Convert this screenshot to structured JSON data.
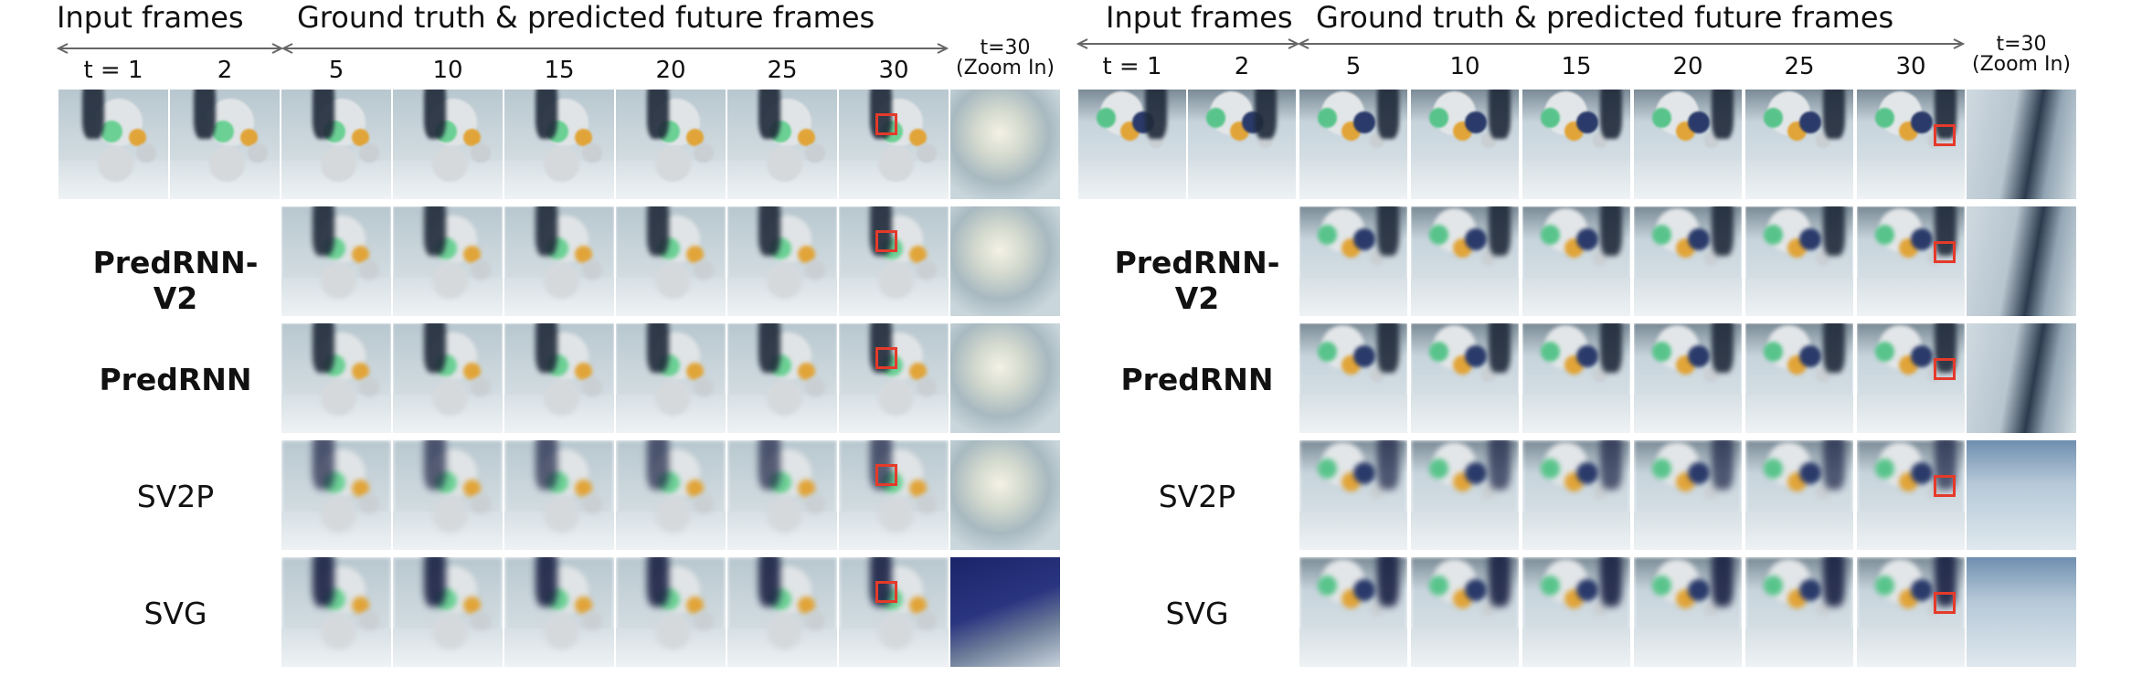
{
  "headers": {
    "input_frames": "Input frames",
    "future_frames": "Ground truth & predicted future frames"
  },
  "time_labels": [
    "t = 1",
    "2",
    "5",
    "10",
    "15",
    "20",
    "25",
    "30"
  ],
  "zoom_label": {
    "line1": "t=30",
    "line2": "(Zoom In)"
  },
  "rows": [
    {
      "label": "",
      "bold": false
    },
    {
      "label": "PredRNN-V2",
      "bold": true
    },
    {
      "label": "PredRNN",
      "bold": true
    },
    {
      "label": "SV2P",
      "bold": false
    },
    {
      "label": "SVG",
      "bold": false
    }
  ],
  "colors": {
    "highlight_box": "#e53a2a",
    "arrow": "#666666"
  }
}
